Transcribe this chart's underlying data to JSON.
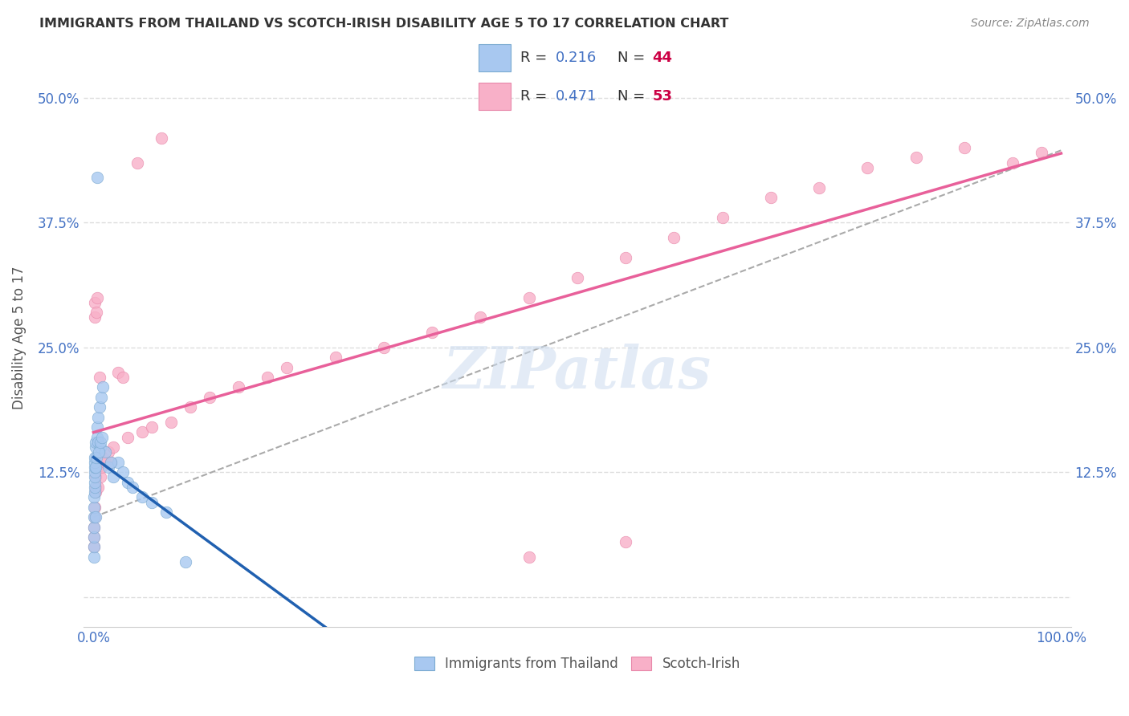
{
  "title": "IMMIGRANTS FROM THAILAND VS SCOTCH-IRISH DISABILITY AGE 5 TO 17 CORRELATION CHART",
  "source": "Source: ZipAtlas.com",
  "ylabel": "Disability Age 5 to 17",
  "watermark": "ZIPatlas",
  "blue_color": "#a8c8f0",
  "pink_color": "#f8b0c8",
  "blue_edge": "#7aaad0",
  "pink_edge": "#e888aa",
  "blue_line_color": "#2060b0",
  "pink_line_color": "#e8609a",
  "dashed_line_color": "#aaaaaa",
  "R1": "0.216",
  "N1": "44",
  "R2": "0.471",
  "N2": "53",
  "label1": "Immigrants from Thailand",
  "label2": "Scotch-Irish",
  "R_color": "#4472c4",
  "N_color": "#cc0044",
  "thai_x": [
    0.02,
    0.03,
    0.04,
    0.05,
    0.06,
    0.07,
    0.08,
    0.09,
    0.1,
    0.11,
    0.12,
    0.13,
    0.14,
    0.15,
    0.16,
    0.18,
    0.2,
    0.22,
    0.25,
    0.3,
    0.35,
    0.4,
    0.45,
    0.5,
    0.6,
    0.7,
    0.8,
    1.0,
    1.2,
    1.5,
    2.0,
    2.5,
    3.0,
    3.5,
    4.0,
    5.0,
    6.0,
    0.4,
    0.55,
    0.75,
    0.9,
    1.8,
    7.5,
    9.5
  ],
  "thai_y": [
    4.0,
    5.0,
    6.0,
    7.0,
    8.0,
    9.0,
    10.0,
    10.5,
    11.0,
    11.5,
    12.0,
    12.5,
    13.0,
    13.5,
    14.0,
    8.0,
    15.0,
    13.0,
    15.5,
    14.0,
    16.0,
    17.0,
    15.5,
    18.0,
    19.0,
    15.0,
    20.0,
    21.0,
    14.5,
    13.0,
    12.0,
    13.5,
    12.5,
    11.5,
    11.0,
    10.0,
    9.5,
    42.0,
    14.5,
    15.5,
    16.0,
    13.5,
    8.5,
    3.5
  ],
  "si_x": [
    0.03,
    0.05,
    0.07,
    0.09,
    0.11,
    0.13,
    0.15,
    0.18,
    0.2,
    0.25,
    0.3,
    0.35,
    0.4,
    0.5,
    0.6,
    0.7,
    0.8,
    1.0,
    1.2,
    1.5,
    1.8,
    2.0,
    2.5,
    3.0,
    3.5,
    4.5,
    5.0,
    6.0,
    7.0,
    8.0,
    10.0,
    12.0,
    15.0,
    18.0,
    20.0,
    25.0,
    30.0,
    35.0,
    40.0,
    45.0,
    50.0,
    55.0,
    60.0,
    65.0,
    70.0,
    75.0,
    80.0,
    85.0,
    90.0,
    95.0,
    98.0,
    55.0,
    45.0
  ],
  "si_y": [
    5.0,
    6.0,
    7.0,
    8.0,
    9.0,
    28.0,
    29.5,
    11.0,
    10.5,
    12.0,
    28.5,
    30.0,
    13.0,
    11.0,
    22.0,
    12.0,
    13.0,
    14.0,
    13.5,
    14.5,
    13.5,
    15.0,
    22.5,
    22.0,
    16.0,
    43.5,
    16.5,
    17.0,
    46.0,
    17.5,
    19.0,
    20.0,
    21.0,
    22.0,
    23.0,
    24.0,
    25.0,
    26.5,
    28.0,
    30.0,
    32.0,
    34.0,
    36.0,
    38.0,
    40.0,
    41.0,
    43.0,
    44.0,
    45.0,
    43.5,
    44.5,
    5.5,
    4.0
  ],
  "xlim": [
    -1,
    101
  ],
  "ylim": [
    -3,
    55
  ],
  "ytick_vals": [
    0,
    12.5,
    25.0,
    37.5,
    50.0
  ],
  "ytick_labels": [
    "",
    "12.5%",
    "25.0%",
    "37.5%",
    "50.0%"
  ]
}
